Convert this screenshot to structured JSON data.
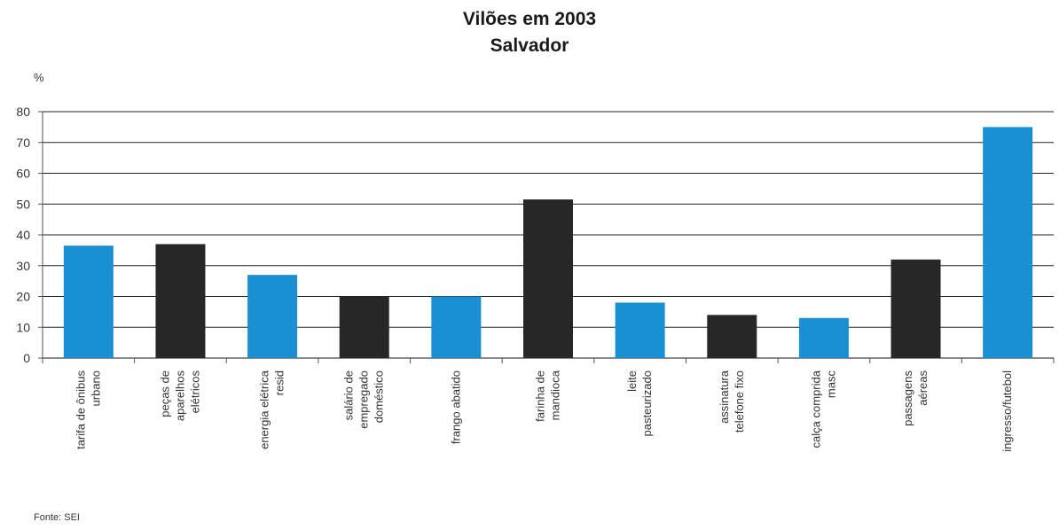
{
  "title": "Vilões em 2003",
  "subtitle": "Salvador",
  "unit_label": "%",
  "source": "Fonte: SEI",
  "colors": {
    "blue": "#1a8fd1",
    "dark": "#272727",
    "grid": "#222222"
  },
  "chart_data": {
    "type": "bar",
    "title": "Vilões em 2003",
    "subtitle": "Salvador",
    "ylabel": "%",
    "ylim": [
      0,
      80
    ],
    "yticks": [
      0,
      10,
      20,
      30,
      40,
      50,
      60,
      70,
      80
    ],
    "grid": true,
    "categories": [
      [
        "tarifa de ônibus",
        "urbano"
      ],
      [
        "peças de",
        "aparelhos",
        "elétricos"
      ],
      [
        "energia elétrica",
        "resid"
      ],
      [
        "salário de",
        "empregado",
        "doméstico"
      ],
      [
        "frango abatido"
      ],
      [
        "farinha de",
        "mandioca"
      ],
      [
        "leite",
        "pasteurizado"
      ],
      [
        "assinatura",
        "telefone fixo"
      ],
      [
        "calça comprida",
        "masc"
      ],
      [
        "passagens",
        "aéreas"
      ],
      [
        "ingresso/futebol"
      ]
    ],
    "values": [
      36.5,
      37,
      27,
      20,
      20,
      51.5,
      18,
      14,
      13,
      32,
      75
    ],
    "bar_colors": [
      "blue",
      "dark",
      "blue",
      "dark",
      "blue",
      "dark",
      "blue",
      "dark",
      "blue",
      "dark",
      "blue"
    ]
  }
}
